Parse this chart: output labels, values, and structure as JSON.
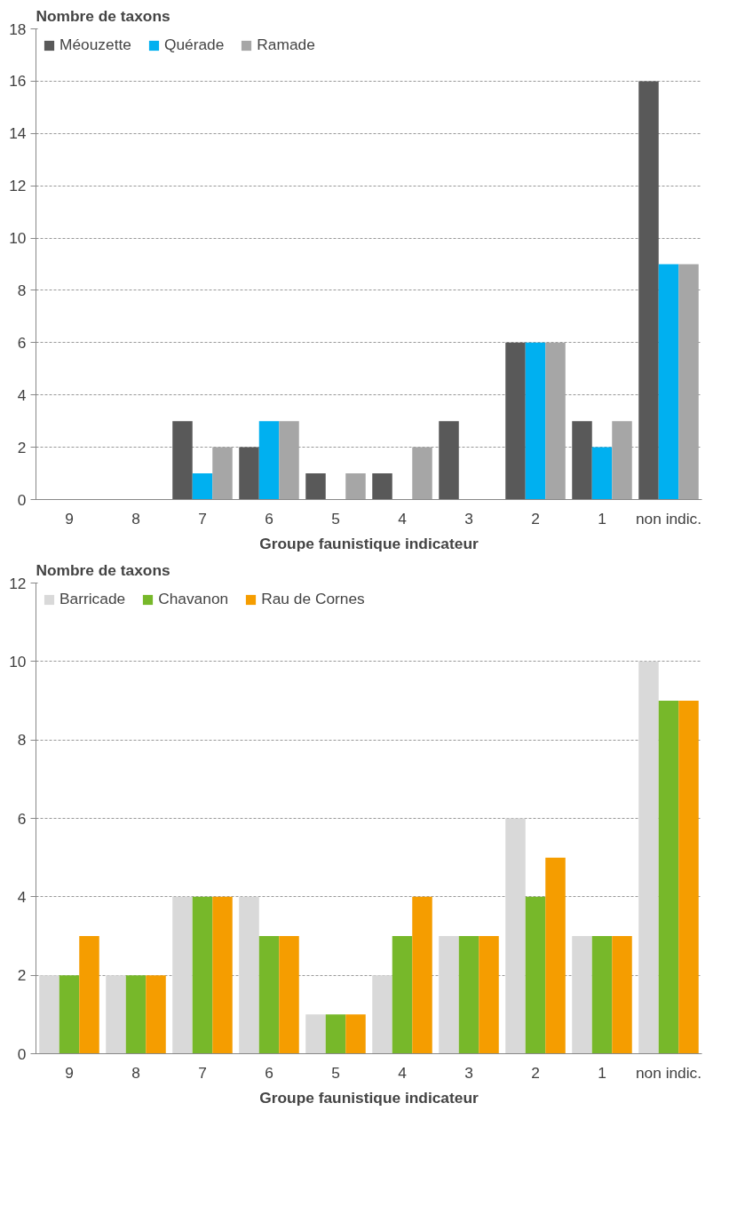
{
  "chart_data": [
    {
      "type": "bar",
      "ylabel": "Nombre de taxons",
      "xlabel": "Groupe faunistique indicateur",
      "categories": [
        "9",
        "8",
        "7",
        "6",
        "5",
        "4",
        "3",
        "2",
        "1",
        "non indic."
      ],
      "series": [
        {
          "name": "Méouzette",
          "color": "#595959",
          "values": [
            0,
            0,
            3,
            2,
            1,
            1,
            3,
            6,
            3,
            16
          ]
        },
        {
          "name": "Quérade",
          "color": "#00b0f0",
          "values": [
            0,
            0,
            1,
            3,
            0,
            0,
            0,
            6,
            2,
            9
          ]
        },
        {
          "name": "Ramade",
          "color": "#a6a6a6",
          "values": [
            0,
            0,
            2,
            3,
            1,
            2,
            0,
            6,
            3,
            9
          ]
        }
      ],
      "ylim": [
        0,
        18
      ],
      "yticks": [
        0,
        2,
        4,
        6,
        8,
        10,
        12,
        14,
        16,
        18
      ],
      "grid": "y",
      "legend": "top"
    },
    {
      "type": "bar",
      "ylabel": "Nombre de taxons",
      "xlabel": "Groupe faunistique indicateur",
      "categories": [
        "9",
        "8",
        "7",
        "6",
        "5",
        "4",
        "3",
        "2",
        "1",
        "non indic."
      ],
      "series": [
        {
          "name": "Barricade",
          "color": "#d9d9d9",
          "values": [
            2,
            2,
            4,
            4,
            1,
            2,
            3,
            6,
            3,
            10
          ]
        },
        {
          "name": "Chavanon",
          "color": "#77b82a",
          "values": [
            2,
            2,
            4,
            3,
            1,
            3,
            3,
            4,
            3,
            9
          ]
        },
        {
          "name": "Rau de Cornes",
          "color": "#f59d00",
          "values": [
            3,
            2,
            4,
            3,
            1,
            4,
            3,
            5,
            3,
            9
          ]
        }
      ],
      "ylim": [
        0,
        12
      ],
      "yticks": [
        0,
        2,
        4,
        6,
        8,
        10,
        12
      ],
      "grid": "y",
      "legend": "top"
    }
  ]
}
